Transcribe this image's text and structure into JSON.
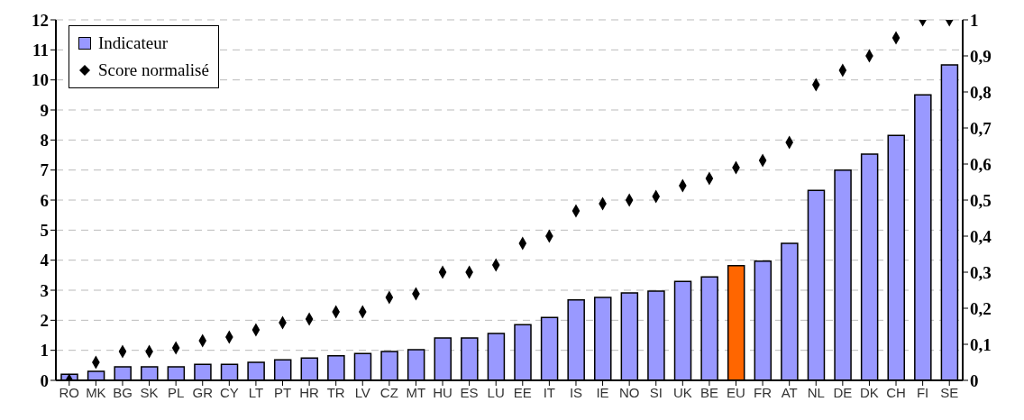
{
  "chart_data": {
    "type": "bar",
    "categories": [
      "RO",
      "MK",
      "BG",
      "SK",
      "PL",
      "GR",
      "CY",
      "LT",
      "PT",
      "HR",
      "TR",
      "LV",
      "CZ",
      "MT",
      "HU",
      "ES",
      "LU",
      "EE",
      "IT",
      "IS",
      "IE",
      "NO",
      "SI",
      "UK",
      "BE",
      "EU",
      "FR",
      "AT",
      "NL",
      "DE",
      "DK",
      "CH",
      "FI",
      "SE"
    ],
    "series": [
      {
        "name": "Indicateur",
        "color": "#9999ff",
        "colors": [
          "#9999ff",
          "#9999ff",
          "#9999ff",
          "#9999ff",
          "#9999ff",
          "#9999ff",
          "#9999ff",
          "#9999ff",
          "#9999ff",
          "#9999ff",
          "#9999ff",
          "#9999ff",
          "#9999ff",
          "#9999ff",
          "#9999ff",
          "#9999ff",
          "#9999ff",
          "#9999ff",
          "#9999ff",
          "#9999ff",
          "#9999ff",
          "#9999ff",
          "#9999ff",
          "#9999ff",
          "#9999ff",
          "#ff6600",
          "#9999ff",
          "#9999ff",
          "#9999ff",
          "#9999ff",
          "#9999ff",
          "#9999ff",
          "#9999ff",
          "#9999ff"
        ],
        "values": [
          0.2,
          0.3,
          0.45,
          0.45,
          0.45,
          0.53,
          0.53,
          0.6,
          0.68,
          0.74,
          0.82,
          0.89,
          0.96,
          1.02,
          1.41,
          1.41,
          1.56,
          1.85,
          2.09,
          2.68,
          2.76,
          2.91,
          2.97,
          3.29,
          3.44,
          3.82,
          3.97,
          4.56,
          6.32,
          7.0,
          7.53,
          8.15,
          9.5,
          10.5
        ]
      },
      {
        "name": "Score normalisé",
        "type": "scatter",
        "axis": "y2",
        "color": "#000000",
        "values": [
          0.0,
          0.05,
          0.08,
          0.08,
          0.09,
          0.11,
          0.12,
          0.14,
          0.16,
          0.17,
          0.19,
          0.19,
          0.23,
          0.24,
          0.3,
          0.3,
          0.32,
          0.38,
          0.4,
          0.47,
          0.49,
          0.5,
          0.51,
          0.54,
          0.56,
          0.59,
          0.61,
          0.66,
          0.82,
          0.86,
          0.9,
          0.95,
          1.0,
          1.0
        ]
      }
    ],
    "ylim": [
      0,
      12
    ],
    "yticks": [
      0,
      1,
      2,
      3,
      4,
      5,
      6,
      7,
      8,
      9,
      10,
      11,
      12
    ],
    "y2lim": [
      0,
      1
    ],
    "y2ticks": [
      0,
      {
        "value": 0.1,
        "label": "0,1"
      },
      {
        "value": 0.2,
        "label": "0,2"
      },
      {
        "value": 0.3,
        "label": "0,3"
      },
      {
        "value": 0.4,
        "label": "0,4"
      },
      {
        "value": 0.5,
        "label": "0,5"
      },
      {
        "value": 0.6,
        "label": "0,6"
      },
      {
        "value": 0.7,
        "label": "0,7"
      },
      {
        "value": 0.8,
        "label": "0,8"
      },
      {
        "value": 0.9,
        "label": "0,9"
      },
      1
    ],
    "grid": "y",
    "legend": "top left",
    "marker": "diamond"
  }
}
